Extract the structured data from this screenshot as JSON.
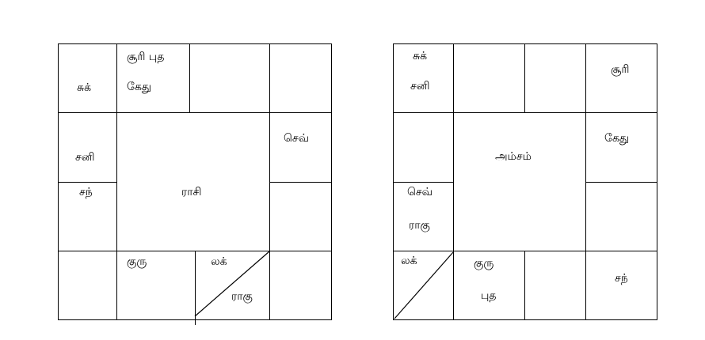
{
  "rasi": {
    "center_label": "ராசி",
    "houses": {
      "top_left": "சுக்",
      "top_2_line1": "சூரி  புத",
      "top_2_line2": "கேது",
      "top_3": "",
      "top_right": "",
      "left_upper": "சனி",
      "left_lower": "சந்",
      "right_upper": "செவ்",
      "right_lower": "",
      "bottom_left": "",
      "bottom_2": "குரு",
      "bottom_3_top": "லக்",
      "bottom_3_bottom": "ராகு",
      "bottom_right": ""
    }
  },
  "amsam": {
    "center_label": "அம்சம்",
    "houses": {
      "top_left_line1": "சுக்",
      "top_left_line2": "சனி",
      "top_2": "",
      "top_3": "",
      "top_right": "சூரி",
      "left_upper": "",
      "left_lower_line1": "செவ்",
      "left_lower_line2": "ராகு",
      "right_upper": "கேது",
      "right_lower": "",
      "bottom_left": "லக்",
      "bottom_2_line1": "குரு",
      "bottom_2_line2": "புத",
      "bottom_3": "",
      "bottom_right": "சந்"
    }
  }
}
